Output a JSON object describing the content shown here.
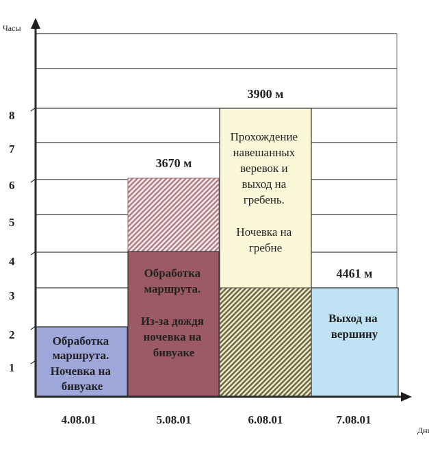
{
  "chart_data": {
    "type": "bar",
    "title": "",
    "xlabel": "Дни",
    "ylabel": "Часы",
    "ylim": [
      0,
      10
    ],
    "yticks": [
      1,
      2,
      3,
      4,
      5,
      6,
      7,
      8
    ],
    "categories": [
      "4.08.01",
      "5.08.01",
      "6.08.01",
      "7.08.01"
    ],
    "grid": true,
    "legend": "none",
    "bars": [
      {
        "category": "4.08.01",
        "segments": [
          {
            "from": 0,
            "to": 2,
            "fill": "#9ea6da",
            "pattern": "solid",
            "text": [
              "Обработка",
              "маршрута.",
              "Ночевка на",
              "бивуаке"
            ],
            "bold": true
          }
        ],
        "top_label": ""
      },
      {
        "category": "5.08.01",
        "segments": [
          {
            "from": 0,
            "to": 4,
            "fill": "#9c5a64",
            "pattern": "solid",
            "text": [
              "Обработка",
              "маршрута.",
              "",
              "Из-за дождя",
              "ночевка на",
              "бивуаке"
            ],
            "bold": true
          },
          {
            "from": 4,
            "to": 6,
            "fill": "#b98a8f",
            "pattern": "hatched",
            "text": []
          }
        ],
        "top_label": "3670 м"
      },
      {
        "category": "6.08.01",
        "segments": [
          {
            "from": 0,
            "to": 3,
            "fill": "#7d7650",
            "pattern": "hatched",
            "text": []
          },
          {
            "from": 3,
            "to": 8,
            "fill": "#fbf8da",
            "pattern": "solid",
            "text": [
              "Прохождение",
              "навешанных",
              "веревок и",
              "выход на",
              "гребень.",
              "",
              "Ночевка на",
              "гребне"
            ],
            "bold": false
          }
        ],
        "top_label": "3900 м"
      },
      {
        "category": "7.08.01",
        "segments": [
          {
            "from": 0,
            "to": 3,
            "fill": "#bfe3f5",
            "pattern": "solid",
            "text": [
              "Выход на",
              "вершину"
            ],
            "bold": true
          }
        ],
        "top_label": "4461 м"
      }
    ],
    "values": [
      2,
      6,
      8,
      3
    ],
    "altitude_labels": [
      "",
      "3670 м",
      "3900 м",
      "4461 м"
    ]
  },
  "axes": {
    "y_label": "Часы",
    "x_label": "Дни",
    "y_ticks": [
      "1",
      "2",
      "3",
      "4",
      "5",
      "6",
      "7",
      "8"
    ]
  },
  "colors": {
    "bar1": "#9ea6da",
    "bar2_solid": "#9c5a64",
    "bar2_hatch": "#b98a8f",
    "bar3_solid": "#fbf8da",
    "bar3_hatch": "#7d7650",
    "bar4": "#bfe3f5"
  }
}
